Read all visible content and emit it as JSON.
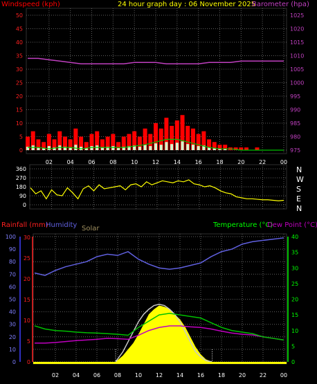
{
  "header": {
    "wind_label": "Windspeed (kph)",
    "title": "24 hour graph day : 06 November 2025",
    "baro_label": "Barometer (hpa)"
  },
  "mid_legend": {
    "rain_label": "Rainfall (mm)",
    "humidity_label": "Humidity",
    "solar_label": "Solar",
    "temp_label": "Temperature (°C)",
    "dew_label": "Dew Point (°C)"
  },
  "colors": {
    "wind": "#ff0000",
    "gust": "#ff0000",
    "wind_avg": "#00c000",
    "baro": "#c040c0",
    "direction": "#ffff00",
    "humidity": "#6060e0",
    "temperature": "#00c000",
    "dewpoint": "#c000c0",
    "rain": "#ff2020",
    "solar": "#ffff00",
    "solar_max": "#c8c8c8",
    "grid": "#606060",
    "axis_left_bottom": "#4040ff",
    "axis_right_temp": "#00ff00"
  },
  "chart_data": [
    {
      "type": "line",
      "panel": "wind-barometer",
      "x_ticks": [
        "02",
        "04",
        "06",
        "08",
        "10",
        "12",
        "14",
        "16",
        "18",
        "20",
        "22",
        "00"
      ],
      "y_left_ticks": [
        "0",
        "5",
        "10",
        "15",
        "20",
        "25",
        "30",
        "35",
        "40",
        "45",
        "50"
      ],
      "y_right_ticks": [
        "975",
        "980",
        "985",
        "990",
        "995",
        "1000",
        "1005",
        "1010",
        "1015",
        "1020",
        "1025"
      ],
      "ylim_left": [
        0,
        50
      ],
      "ylim_right": [
        975,
        1025
      ],
      "series": [
        {
          "name": "Barometer (hpa)",
          "x": [
            0,
            1,
            2,
            3,
            4,
            5,
            6,
            7,
            8,
            9,
            10,
            11,
            12,
            13,
            14,
            15,
            16,
            17,
            18,
            19,
            20,
            21,
            22,
            23,
            24
          ],
          "values": [
            1009,
            1009,
            1008.5,
            1008,
            1007.5,
            1007,
            1007,
            1007,
            1007,
            1007,
            1007.5,
            1007.5,
            1007.5,
            1007,
            1007,
            1007,
            1007,
            1007.5,
            1007.5,
            1007.5,
            1008,
            1008,
            1008,
            1008,
            1008
          ]
        },
        {
          "name": "Windspeed (kph)",
          "x": [
            0,
            0.5,
            1,
            1.5,
            2,
            2.5,
            3,
            3.5,
            4,
            4.5,
            5,
            5.5,
            6,
            6.5,
            7,
            7.5,
            8,
            8.5,
            9,
            9.5,
            10,
            10.5,
            11,
            11.5,
            12,
            12.5,
            13,
            13.5,
            14,
            14.5,
            15,
            15.5,
            16,
            16.5,
            17,
            17.5,
            18,
            18.5,
            19,
            19.5,
            20,
            20.5,
            21,
            21.5,
            22,
            22.5,
            23,
            23.5,
            24
          ],
          "values": [
            5,
            7,
            4,
            3,
            6,
            4,
            7,
            5,
            4,
            8,
            5,
            3,
            6,
            7,
            4,
            5,
            6,
            3,
            5,
            6,
            7,
            5,
            8,
            6,
            10,
            8,
            12,
            9,
            11,
            13,
            9,
            8,
            6,
            7,
            4,
            3,
            2,
            2,
            1,
            1,
            1,
            1,
            0,
            1,
            0,
            0,
            0,
            0,
            0
          ]
        },
        {
          "name": "Average",
          "x": [
            0,
            1,
            2,
            3,
            4,
            5,
            6,
            7,
            8,
            9,
            10,
            11,
            12,
            13,
            14,
            15,
            16,
            17,
            18,
            19,
            20,
            21,
            22,
            23,
            24
          ],
          "values": [
            1,
            1,
            0.5,
            1,
            1,
            0.5,
            1,
            1,
            1,
            1,
            1.5,
            2,
            3,
            4,
            4,
            3,
            2,
            1,
            0.5,
            0.5,
            0,
            0,
            0,
            0,
            0
          ]
        }
      ]
    },
    {
      "type": "scatter",
      "panel": "wind-direction",
      "x_ticks": [
        "02",
        "04",
        "06",
        "08",
        "10",
        "12",
        "14",
        "16",
        "18",
        "20",
        "22",
        "00"
      ],
      "y_left_ticks": [
        "0",
        "90",
        "180",
        "270",
        "360"
      ],
      "y_right_ticks": [
        "N",
        "E",
        "S",
        "W",
        "N"
      ],
      "ylim": [
        0,
        360
      ],
      "series": [
        {
          "name": "Wind direction",
          "x": [
            0,
            0.5,
            1,
            1.5,
            2,
            2.5,
            3,
            3.5,
            4,
            4.5,
            5,
            5.5,
            6,
            6.5,
            7,
            7.5,
            8,
            8.5,
            9,
            9.5,
            10,
            10.5,
            11,
            11.5,
            12,
            12.5,
            13,
            13.5,
            14,
            14.5,
            15,
            15.5,
            16,
            16.5,
            17,
            17.5,
            18,
            18.5,
            19,
            19.5,
            20,
            20.5,
            21,
            21.5,
            22,
            22.5,
            23,
            23.5,
            24
          ],
          "values": [
            170,
            110,
            140,
            60,
            150,
            100,
            90,
            170,
            120,
            60,
            160,
            190,
            140,
            200,
            160,
            170,
            180,
            190,
            150,
            200,
            210,
            180,
            230,
            200,
            220,
            240,
            230,
            220,
            240,
            230,
            250,
            210,
            200,
            180,
            190,
            170,
            140,
            120,
            110,
            80,
            70,
            60,
            60,
            55,
            50,
            50,
            45,
            40,
            45
          ]
        }
      ]
    },
    {
      "type": "line",
      "panel": "temperature-humidity",
      "x_ticks": [
        "02",
        "04",
        "06",
        "08",
        "10",
        "12",
        "14",
        "16",
        "18",
        "20",
        "22",
        "00"
      ],
      "y_humidity_ticks": [
        "0",
        "10",
        "20",
        "30",
        "40",
        "50",
        "60",
        "70",
        "80",
        "90",
        "100"
      ],
      "y_rain_ticks": [
        "0",
        "5",
        "10",
        "15",
        "20",
        "25",
        "30"
      ],
      "y_right_ticks": [
        "0",
        "5",
        "10",
        "15",
        "20",
        "25",
        "30",
        "35",
        "40"
      ],
      "ylim_humidity": [
        0,
        100
      ],
      "ylim_rain": [
        0,
        30
      ],
      "ylim_temp": [
        0,
        40
      ],
      "series": [
        {
          "name": "Humidity",
          "x": [
            0,
            1,
            2,
            3,
            4,
            5,
            6,
            7,
            8,
            9,
            10,
            11,
            12,
            13,
            14,
            15,
            16,
            17,
            18,
            19,
            20,
            21,
            22,
            23,
            24
          ],
          "values": [
            71,
            69,
            73,
            76,
            78,
            80,
            84,
            86,
            85,
            88,
            82,
            78,
            75,
            74,
            75,
            77,
            79,
            84,
            88,
            90,
            94,
            96,
            97,
            98,
            99
          ]
        },
        {
          "name": "Temperature (°C)",
          "x": [
            0,
            1,
            2,
            3,
            4,
            5,
            6,
            7,
            8,
            9,
            10,
            11,
            12,
            13,
            14,
            15,
            16,
            17,
            18,
            19,
            20,
            21,
            22,
            23,
            24
          ],
          "values": [
            11.5,
            10.5,
            10,
            9.8,
            9.5,
            9.3,
            9.2,
            9,
            8.8,
            8.5,
            11,
            13,
            15,
            15.5,
            15,
            14.5,
            14,
            12.5,
            11,
            10,
            9.5,
            9,
            8,
            7.5,
            7
          ]
        },
        {
          "name": "Dew Point (°C)",
          "x": [
            0,
            1,
            2,
            3,
            4,
            5,
            6,
            7,
            8,
            9,
            10,
            11,
            12,
            13,
            14,
            15,
            16,
            17,
            18,
            19,
            20,
            21,
            22,
            23,
            24
          ],
          "values": [
            6,
            6,
            6.2,
            6.5,
            6.8,
            7,
            7.2,
            7.5,
            7.4,
            7.2,
            8.5,
            10,
            11,
            11.5,
            11.5,
            11.2,
            11,
            10.5,
            9.8,
            9.2,
            8.8,
            8.6,
            8,
            7.5,
            7
          ]
        },
        {
          "name": "Solar",
          "x": [
            7.8,
            8.5,
            9,
            9.5,
            10,
            10.5,
            11,
            11.5,
            12,
            12.5,
            13,
            13.5,
            14,
            14.5,
            15,
            15.5,
            16,
            16.5,
            17.1
          ],
          "values": [
            0,
            5,
            10,
            15,
            22,
            30,
            38,
            42,
            45,
            44,
            42,
            38,
            34,
            28,
            20,
            12,
            6,
            2,
            0
          ]
        },
        {
          "name": "Solar max",
          "x": [
            7.8,
            8.5,
            9,
            9.5,
            10,
            10.5,
            11,
            11.5,
            12,
            12.5,
            13,
            13.5,
            14,
            14.5,
            15,
            15.5,
            16,
            16.5,
            17.1
          ],
          "values": [
            0,
            8,
            16,
            24,
            32,
            38,
            42,
            45,
            46,
            45,
            42,
            38,
            32,
            24,
            16,
            8,
            4,
            1,
            0
          ]
        }
      ]
    }
  ]
}
